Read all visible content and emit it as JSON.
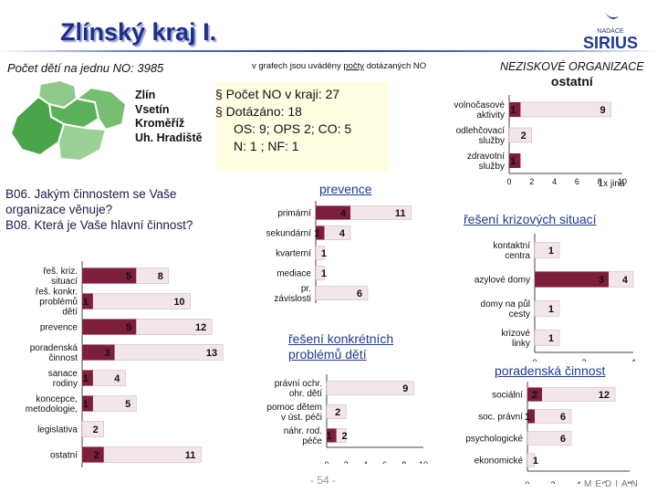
{
  "header": {
    "title": "Zlínský kraj I.",
    "logo_top": "NADACE",
    "logo_name": "SIRIUS"
  },
  "intro": {
    "kids_per_ngo": "Počet dětí na jednu NO: 3985",
    "note_pre": "v grafech jsou uváděny ",
    "note_underlined": "počty",
    "note_post": " dotázaných NO",
    "ngo_title_line1": "NEZISKOVÉ ORGANIZACE",
    "ngo_title_line2": "ostatní"
  },
  "districts": [
    "Zlín",
    "Vsetín",
    "Kroměříž",
    "Uh. Hradiště"
  ],
  "stats": {
    "line1": "§ Počet NO v kraji: 27",
    "line2": "§ Dotázáno: 18",
    "line3": "OS: 9; OPS 2; CO: 5",
    "line4": "N: 1 ; NF: 1"
  },
  "questions": {
    "q1": "B06. Jakým činnostem se Vaše",
    "q1b": "organizace věnuje?",
    "q2": "B08. Která je Vaše hlavní činnost?"
  },
  "footer": {
    "page": "- 54 -",
    "brand": "MEDIAN"
  },
  "colors": {
    "title": "#1d2f8c",
    "bar_fill": "#7d1f3a",
    "bar_light": "#f3e6ea"
  },
  "chart_data": [
    {
      "id": "ostatni",
      "type": "bar",
      "orientation": "horizontal",
      "title": "",
      "categories": [
        "volnočasové aktivity",
        "odlehčovací služby",
        "zdravotní služby"
      ],
      "series": [
        {
          "name": "hlavní činnost",
          "values": [
            1,
            0,
            1
          ]
        },
        {
          "name": "věnuje se",
          "values": [
            9,
            2,
            0
          ]
        }
      ],
      "xlim": [
        0,
        10
      ],
      "xticks": [
        "0",
        "2",
        "4",
        "6",
        "8",
        "10"
      ],
      "annotation": "1x jiná"
    },
    {
      "id": "prevence",
      "type": "bar",
      "orientation": "horizontal",
      "title": "prevence",
      "categories": [
        "primární",
        "sekundární",
        "kvarterní",
        "mediace",
        "pr. závislosti"
      ],
      "series": [
        {
          "name": "hlavní činnost",
          "values": [
            4,
            1,
            0,
            0,
            0
          ]
        },
        {
          "name": "věnuje se",
          "values": [
            11,
            4,
            1,
            1,
            6
          ]
        }
      ],
      "xlim": [
        0,
        12
      ],
      "xticks": []
    },
    {
      "id": "krizove",
      "type": "bar",
      "orientation": "horizontal",
      "title": "řešení krizových situací",
      "categories": [
        "kontaktní centra",
        "azylové domy",
        "domy na půl cesty",
        "krizové linky"
      ],
      "series": [
        {
          "name": "hlavní činnost",
          "values": [
            0,
            3,
            0,
            0
          ]
        },
        {
          "name": "věnuje se",
          "values": [
            1,
            4,
            1,
            1
          ]
        }
      ],
      "xlim": [
        0,
        4
      ],
      "xticks": [
        "0",
        "2",
        "4"
      ]
    },
    {
      "id": "hlavni",
      "type": "bar",
      "orientation": "horizontal",
      "title": "",
      "categories": [
        "řeš. kriz. situací",
        "řeš. konkr. problémů dětí",
        "prevence",
        "poradenská činnost",
        "sanace rodiny",
        "koncepce, metodologie,",
        "legislativa",
        "ostatní"
      ],
      "series": [
        {
          "name": "hlavní činnost",
          "values": [
            5,
            1,
            5,
            3,
            1,
            1,
            0,
            2
          ]
        },
        {
          "name": "věnuje se",
          "values": [
            8,
            10,
            12,
            13,
            4,
            5,
            2,
            11
          ]
        }
      ],
      "xlim": [
        0,
        14
      ],
      "xticks": []
    },
    {
      "id": "konkretni",
      "type": "bar",
      "orientation": "horizontal",
      "title": "řešení konkrétních problémů dětí",
      "categories": [
        "právní ochr. ohr. dětí",
        "pomoc dětem v úst. péči",
        "náhr. rod. péče"
      ],
      "series": [
        {
          "name": "hlavní činnost",
          "values": [
            0,
            0,
            1
          ]
        },
        {
          "name": "věnuje se",
          "values": [
            9,
            2,
            2
          ]
        }
      ],
      "xlim": [
        0,
        10
      ],
      "xticks": [
        "0",
        "2",
        "4",
        "6",
        "8",
        "10"
      ]
    },
    {
      "id": "poradenska",
      "type": "bar",
      "orientation": "horizontal",
      "title": "poradenská činnost",
      "categories": [
        "sociální",
        "soc. právní",
        "psychologické",
        "ekonomické"
      ],
      "series": [
        {
          "name": "hlavní činnost",
          "values": [
            2,
            1,
            0,
            0
          ]
        },
        {
          "name": "věnuje se",
          "values": [
            12,
            6,
            6,
            1
          ]
        }
      ],
      "xlim": [
        0,
        14
      ],
      "xticks": [
        "0",
        "2",
        "4",
        "6",
        "8"
      ]
    }
  ]
}
